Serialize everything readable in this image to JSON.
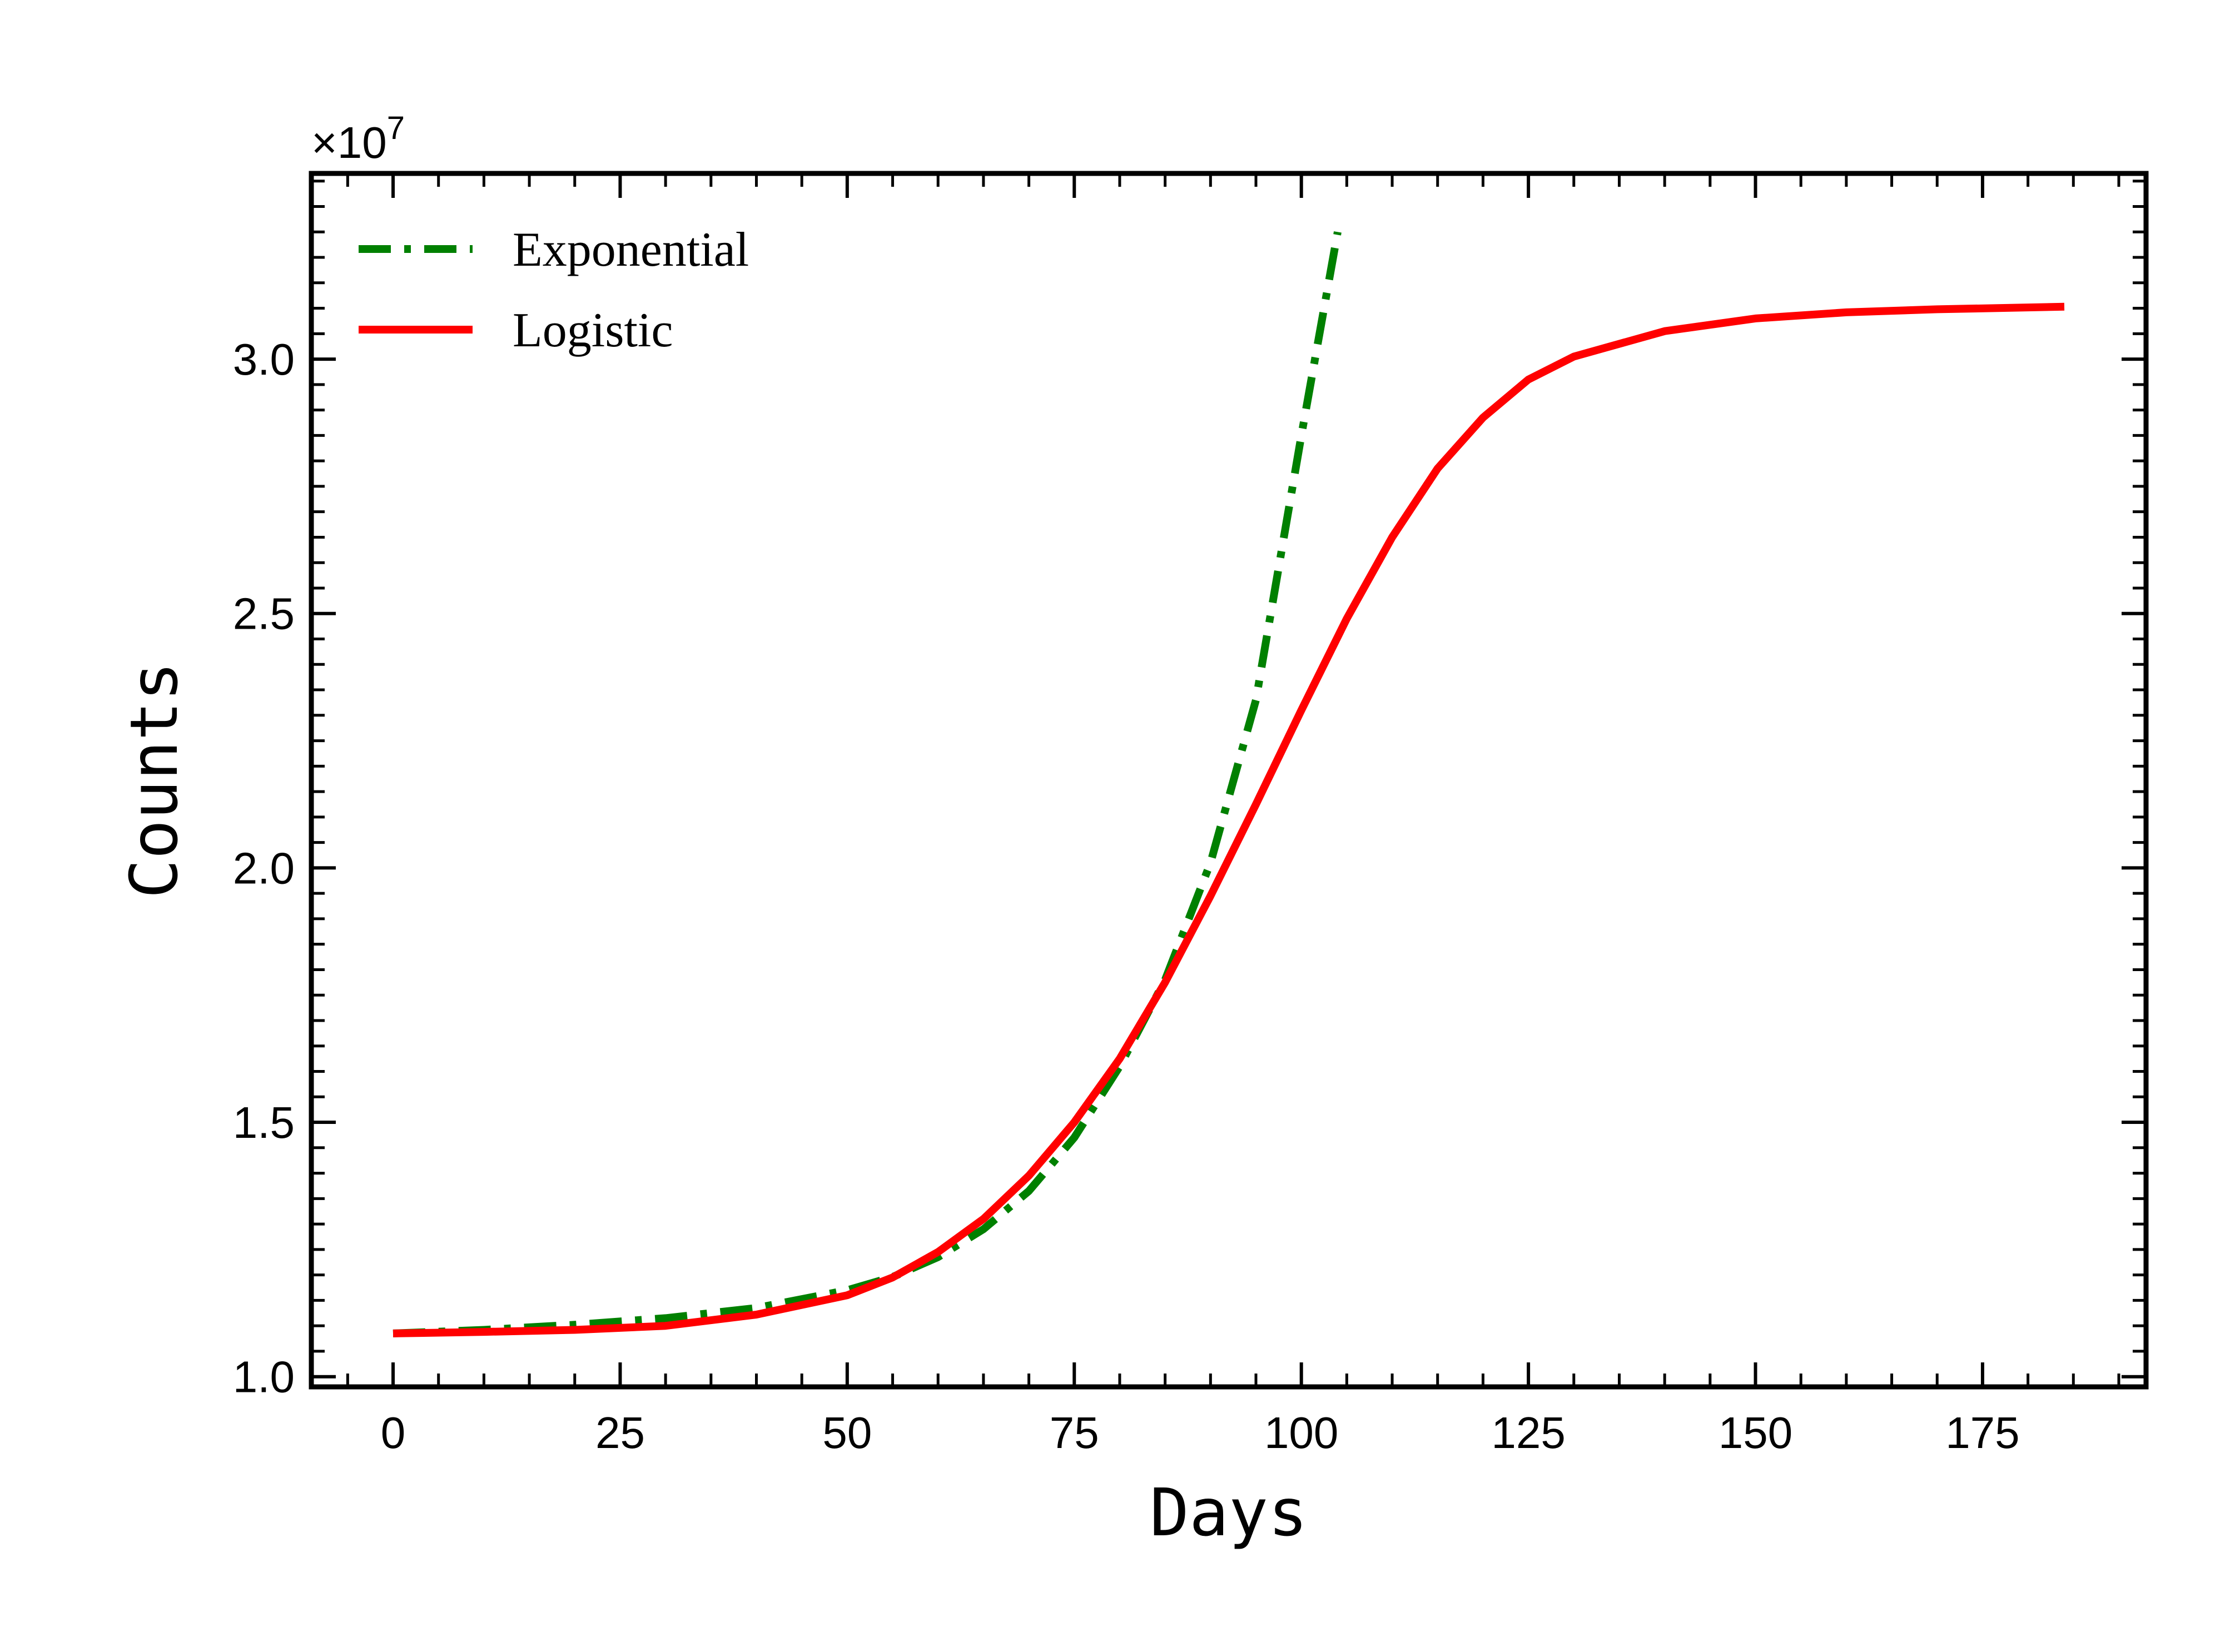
{
  "chart_data": {
    "type": "line",
    "title": "",
    "xlabel": "Days",
    "ylabel": "Counts",
    "y_multiplier": "×10",
    "y_multiplier_exponent": "7",
    "xlim": [
      -9,
      193
    ],
    "ylim": [
      0.98,
      3.365
    ],
    "xticks": [
      0,
      25,
      50,
      75,
      100,
      125,
      150,
      175
    ],
    "xtick_labels": [
      "0",
      "25",
      "50",
      "75",
      "100",
      "125",
      "150",
      "175"
    ],
    "yticks": [
      1.0,
      1.5,
      2.0,
      2.5,
      3.0
    ],
    "ytick_labels": [
      "1.0",
      "1.5",
      "2.0",
      "2.5",
      "3.0"
    ],
    "grid": false,
    "legend_position": "top-left",
    "series": [
      {
        "name": "Exponential",
        "color": "#008000",
        "style": "dash-dot",
        "x": [
          0,
          10,
          20,
          30,
          40,
          50,
          55,
          60,
          65,
          70,
          75,
          80,
          85,
          90,
          95,
          100,
          104
        ],
        "y": [
          1.085,
          1.092,
          1.102,
          1.115,
          1.135,
          1.17,
          1.196,
          1.235,
          1.29,
          1.365,
          1.47,
          1.61,
          1.78,
          2.01,
          2.33,
          2.85,
          3.25
        ]
      },
      {
        "name": "Logistic",
        "color": "#ff0000",
        "style": "solid",
        "x": [
          0,
          10,
          20,
          30,
          40,
          50,
          55,
          60,
          65,
          70,
          75,
          80,
          85,
          90,
          95,
          100,
          105,
          110,
          115,
          120,
          125,
          130,
          140,
          150,
          160,
          170,
          184
        ],
        "y": [
          1.085,
          1.088,
          1.092,
          1.1,
          1.122,
          1.16,
          1.195,
          1.245,
          1.31,
          1.395,
          1.5,
          1.625,
          1.775,
          1.945,
          2.125,
          2.31,
          2.49,
          2.65,
          2.785,
          2.885,
          2.96,
          3.005,
          3.055,
          3.08,
          3.092,
          3.098,
          3.103
        ]
      }
    ]
  }
}
